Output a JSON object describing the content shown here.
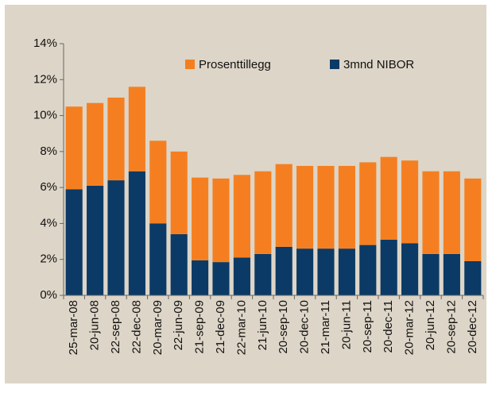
{
  "chart_data": {
    "type": "stacked_bar",
    "categories": [
      "25-mar-08",
      "20-jun-08",
      "22-sep-08",
      "22-dec-08",
      "20-mar-09",
      "22-jun-09",
      "21-sep-09",
      "21-dec-09",
      "22-mar-10",
      "21-jun-10",
      "20-sep-10",
      "20-dec-10",
      "21-mar-11",
      "20-jun-11",
      "20-sep-11",
      "20-dec-11",
      "20-mar-12",
      "20-jun-12",
      "20-sep-12",
      "20-dec-12"
    ],
    "series": [
      {
        "name": "3mnd NIBOR",
        "color": "#0b3a66",
        "values": [
          5.9,
          6.1,
          6.4,
          6.9,
          4.0,
          3.4,
          1.95,
          1.85,
          2.1,
          2.3,
          2.7,
          2.6,
          2.6,
          2.6,
          2.8,
          3.1,
          2.9,
          2.3,
          2.3,
          1.9
        ]
      },
      {
        "name": "Prosenttillegg",
        "color": "#f57f20",
        "values": [
          4.6,
          4.6,
          4.6,
          4.7,
          4.6,
          4.6,
          4.6,
          4.65,
          4.6,
          4.6,
          4.6,
          4.6,
          4.6,
          4.6,
          4.6,
          4.6,
          4.6,
          4.6,
          4.6,
          4.6
        ]
      }
    ],
    "ylim": [
      0,
      14
    ],
    "yticks": [
      {
        "value": 0,
        "label": "0%"
      },
      {
        "value": 2,
        "label": "2%"
      },
      {
        "value": 4,
        "label": "4%"
      },
      {
        "value": 6,
        "label": "6%"
      },
      {
        "value": 8,
        "label": "8%"
      },
      {
        "value": 10,
        "label": "10%"
      },
      {
        "value": 12,
        "label": "12%"
      },
      {
        "value": 14,
        "label": "14%"
      }
    ],
    "legend": "top"
  }
}
